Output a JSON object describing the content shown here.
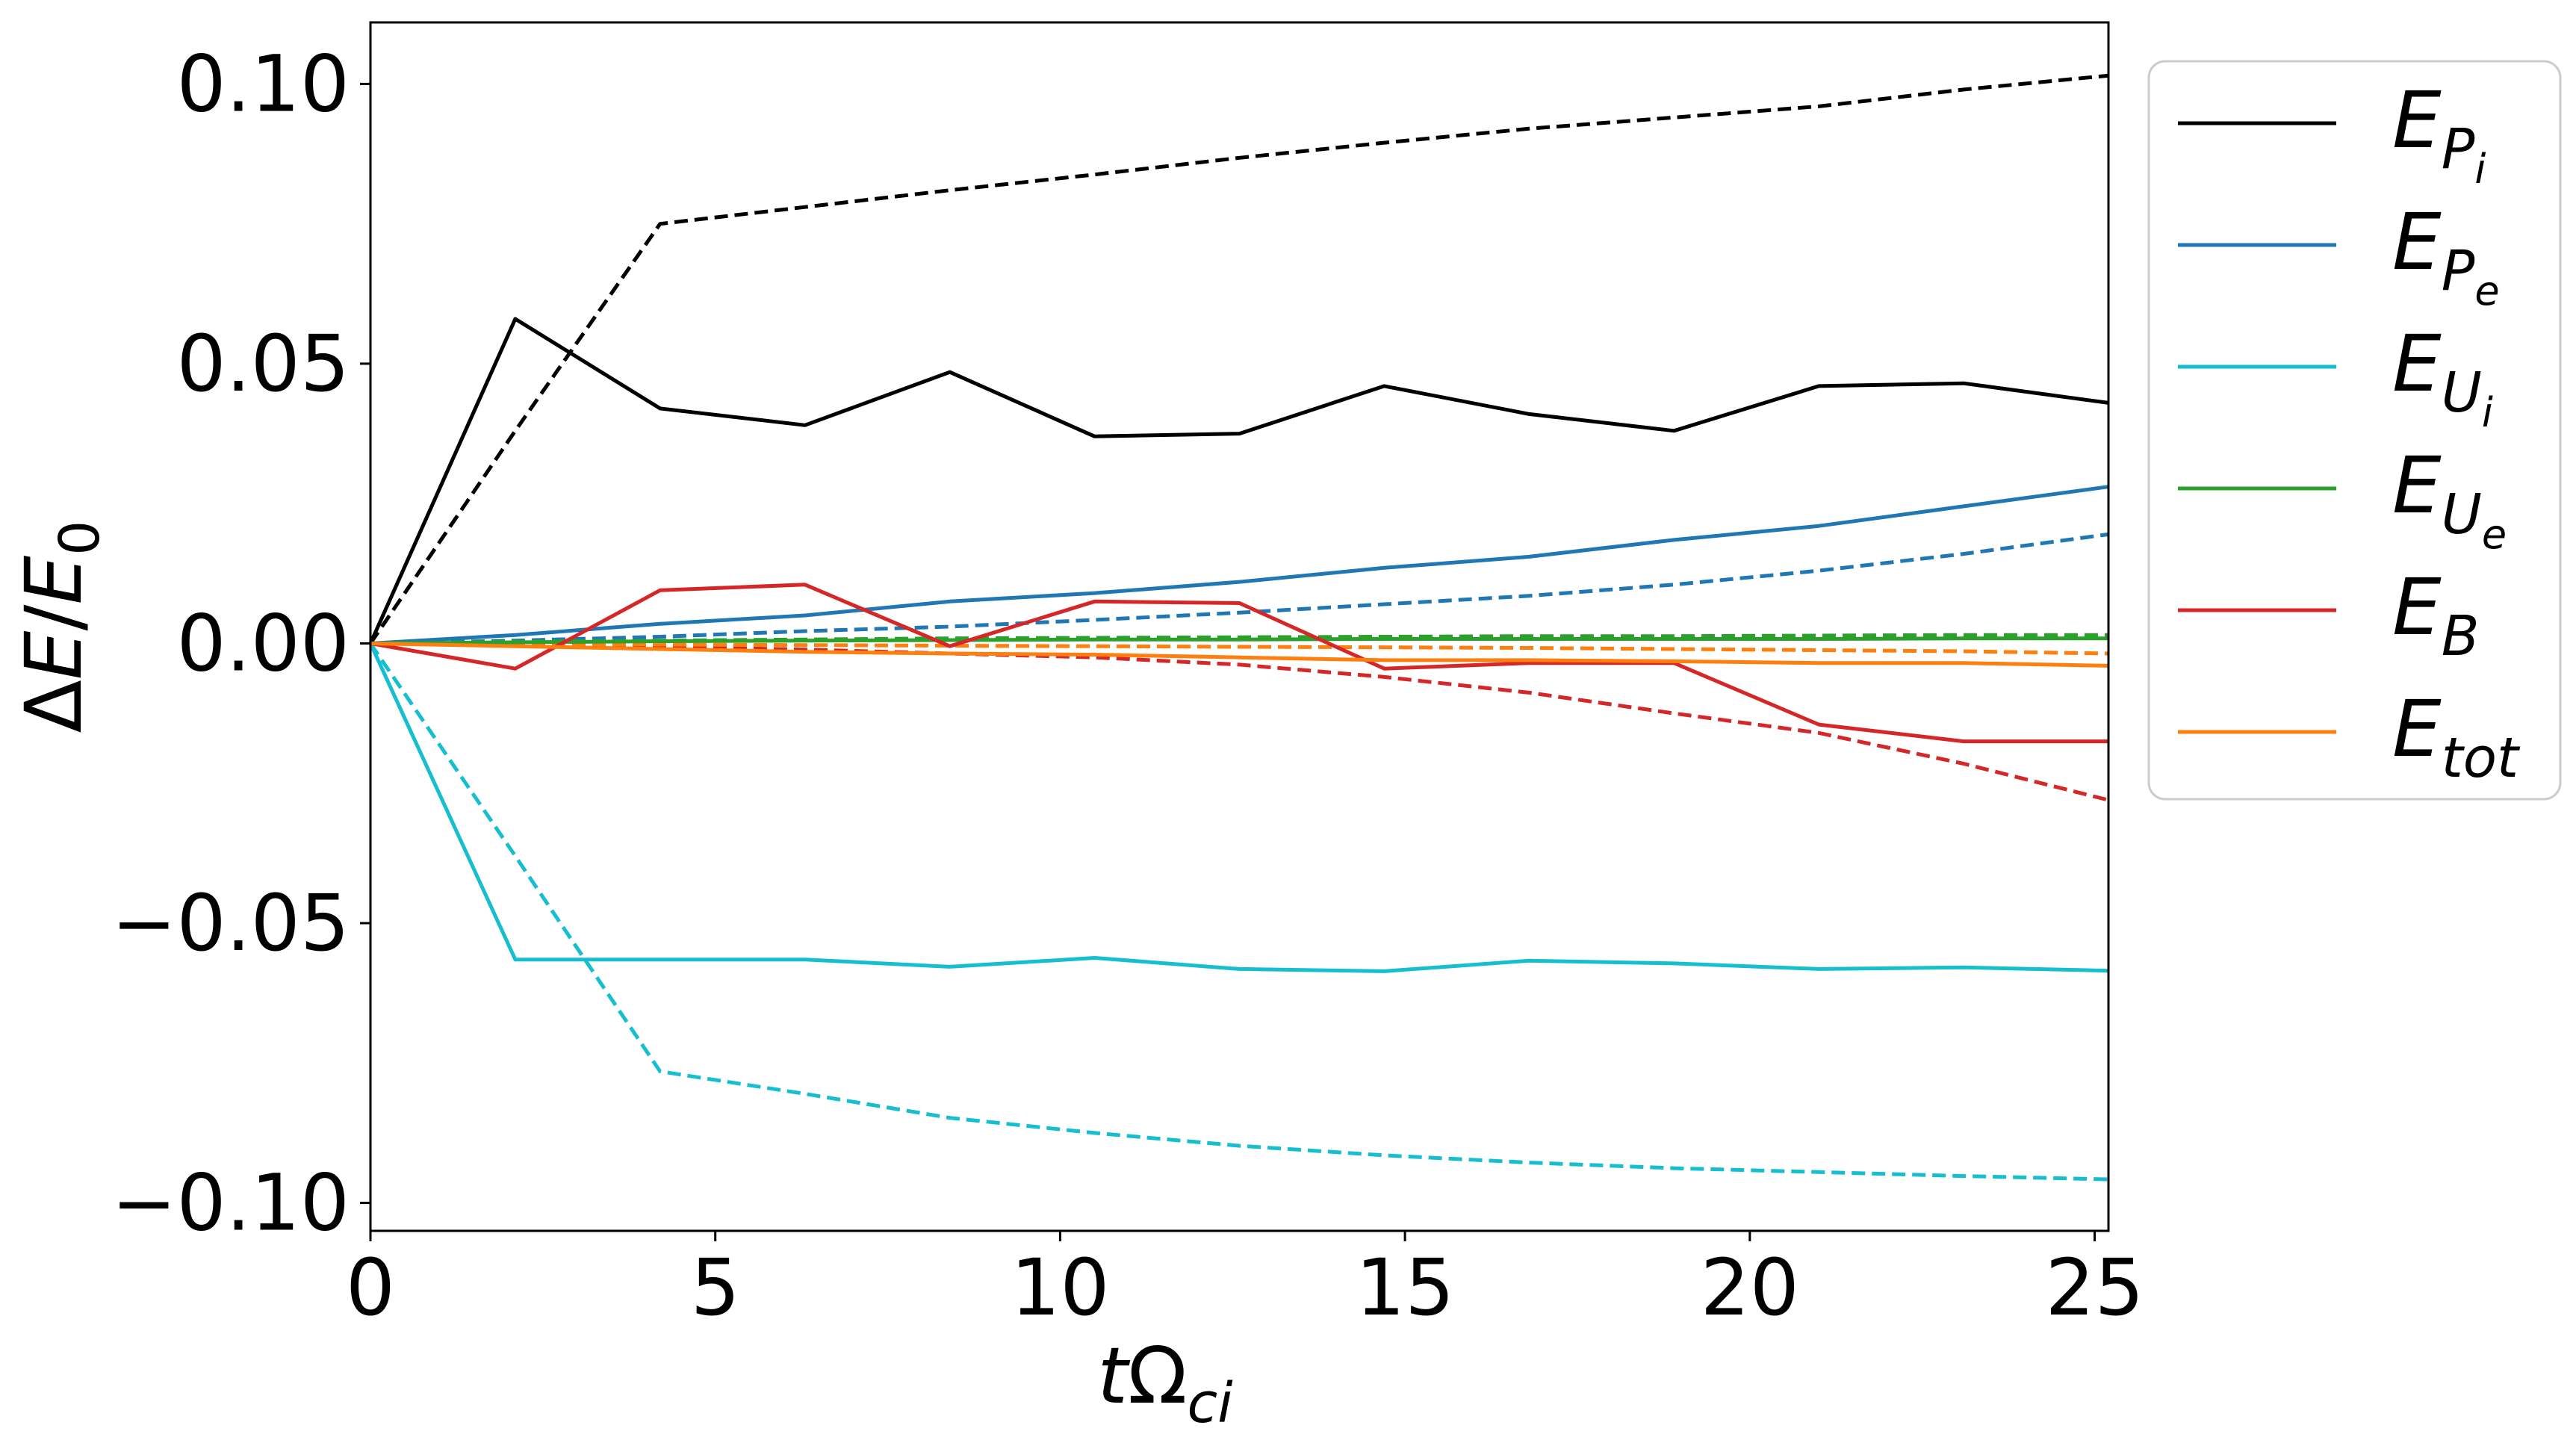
{
  "chart_data": {
    "type": "line",
    "title": "",
    "xlabel": {
      "main": "t",
      "omega": "Ω",
      "sub": "ci"
    },
    "ylabel": {
      "delta": "Δ",
      "e": "E",
      "slash": "/",
      "e0": "E",
      "sub0": "0"
    },
    "xlim": [
      0,
      25.2
    ],
    "ylim": [
      -0.105,
      0.111
    ],
    "xticks": [
      0,
      5,
      10,
      15,
      20,
      25
    ],
    "xtick_labels": [
      "0",
      "5",
      "10",
      "15",
      "20",
      "25"
    ],
    "yticks": [
      -0.1,
      -0.05,
      0.0,
      0.05,
      0.1
    ],
    "ytick_labels": [
      "−0.10",
      "−0.05",
      "0.00",
      "0.05",
      "0.10"
    ],
    "legend_position": "outside-right",
    "x": [
      0,
      2.1,
      4.2,
      6.3,
      8.4,
      10.5,
      12.6,
      14.7,
      16.8,
      18.9,
      21.0,
      23.1,
      25.2
    ],
    "series": [
      {
        "name": "E_Pi",
        "label_main": "E",
        "label_sub": "P",
        "label_subsub": "i",
        "color": "#000000",
        "style": "solid",
        "values": [
          0,
          0.058,
          0.042,
          0.039,
          0.0485,
          0.037,
          0.0375,
          0.046,
          0.041,
          0.038,
          0.046,
          0.0465,
          0.043
        ]
      },
      {
        "name": "E_Pe",
        "label_main": "E",
        "label_sub": "P",
        "label_subsub": "e",
        "color": "#1f77b4",
        "style": "solid",
        "values": [
          0,
          0.0015,
          0.0035,
          0.005,
          0.0075,
          0.009,
          0.011,
          0.0135,
          0.0155,
          0.0185,
          0.021,
          0.0245,
          0.028
        ]
      },
      {
        "name": "E_Ui",
        "label_main": "E",
        "label_sub": "U",
        "label_subsub": "i",
        "color": "#17becf",
        "style": "solid",
        "values": [
          0,
          -0.0565,
          -0.0565,
          -0.0565,
          -0.0578,
          -0.0562,
          -0.0582,
          -0.0586,
          -0.0567,
          -0.0572,
          -0.0582,
          -0.0579,
          -0.0585
        ]
      },
      {
        "name": "E_Ue",
        "label_main": "E",
        "label_sub": "U",
        "label_subsub": "e",
        "color": "#2ca02c",
        "style": "solid",
        "values": [
          0,
          0.0002,
          0.0004,
          0.0005,
          0.0006,
          0.0007,
          0.0007,
          0.0008,
          0.0008,
          0.0008,
          0.0008,
          0.0009,
          0.0009
        ]
      },
      {
        "name": "E_B",
        "label_main": "E",
        "label_sub": "B",
        "label_subsub": "",
        "color": "#d62728",
        "style": "solid",
        "values": [
          0,
          -0.0045,
          0.0095,
          0.0105,
          -0.0005,
          0.0075,
          0.0072,
          -0.0045,
          -0.0035,
          -0.0035,
          -0.0145,
          -0.0175,
          -0.0175
        ]
      },
      {
        "name": "E_tot",
        "label_main": "E",
        "label_sub": "tot",
        "label_subsub": "",
        "color": "#ff7f0e",
        "style": "solid",
        "values": [
          0,
          -0.0005,
          -0.001,
          -0.0015,
          -0.0018,
          -0.002,
          -0.0025,
          -0.003,
          -0.003,
          -0.0032,
          -0.0035,
          -0.0035,
          -0.004
        ]
      },
      {
        "name": "E_Pi dashed",
        "color": "#000000",
        "style": "dashed",
        "in_legend": false,
        "values": [
          0,
          0.038,
          0.075,
          0.078,
          0.081,
          0.0838,
          0.0868,
          0.0895,
          0.092,
          0.094,
          0.096,
          0.099,
          0.1015
        ]
      },
      {
        "name": "E_Pe dashed",
        "color": "#1f77b4",
        "style": "dashed",
        "in_legend": false,
        "values": [
          0,
          0.0005,
          0.0012,
          0.0022,
          0.003,
          0.0042,
          0.0055,
          0.007,
          0.0085,
          0.0105,
          0.013,
          0.016,
          0.0195
        ]
      },
      {
        "name": "E_Ui dashed",
        "color": "#17becf",
        "style": "dashed",
        "in_legend": false,
        "values": [
          0,
          -0.038,
          -0.0765,
          -0.0805,
          -0.0848,
          -0.0875,
          -0.0898,
          -0.0915,
          -0.0928,
          -0.0938,
          -0.0945,
          -0.0952,
          -0.0958
        ]
      },
      {
        "name": "E_Ue dashed",
        "color": "#2ca02c",
        "style": "dashed",
        "in_legend": false,
        "values": [
          0,
          0.0003,
          0.0005,
          0.0007,
          0.0009,
          0.001,
          0.0011,
          0.0012,
          0.0013,
          0.0013,
          0.0014,
          0.0015,
          0.0015
        ]
      },
      {
        "name": "E_B dashed",
        "color": "#d62728",
        "style": "dashed",
        "in_legend": false,
        "values": [
          0,
          -0.0002,
          -0.0006,
          -0.0011,
          -0.0018,
          -0.0025,
          -0.0038,
          -0.006,
          -0.0088,
          -0.0125,
          -0.016,
          -0.0215,
          -0.028
        ]
      },
      {
        "name": "E_tot dashed",
        "color": "#ff7f0e",
        "style": "dashed",
        "in_legend": false,
        "values": [
          0,
          -0.0001,
          -0.0002,
          -0.0003,
          -0.0004,
          -0.0005,
          -0.0006,
          -0.0007,
          -0.0008,
          -0.001,
          -0.0012,
          -0.0014,
          -0.0018
        ]
      }
    ]
  }
}
